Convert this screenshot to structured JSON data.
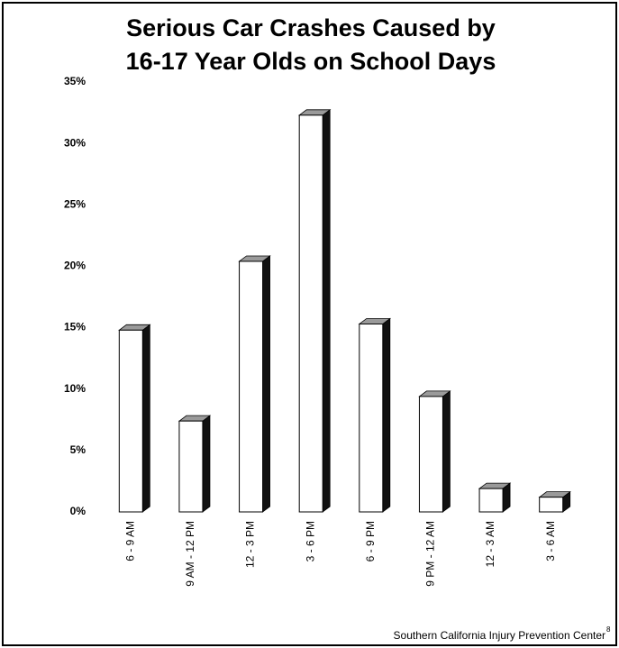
{
  "chart_data": {
    "type": "bar3d",
    "title": [
      "Serious Car Crashes Caused by",
      "16-17 Year Olds on School Days"
    ],
    "categories": [
      "6 - 9 AM",
      "9 AM - 12 PM",
      "12 - 3 PM",
      "3 - 6 PM",
      "6 - 9 PM",
      "9 PM - 12 AM",
      "12 - 3 AM",
      "3 - 6 AM"
    ],
    "values": [
      14.8,
      7.4,
      20.4,
      32.3,
      15.3,
      9.4,
      1.9,
      1.2
    ],
    "color": "#ffffff",
    "side_color": "#111111",
    "top_color": "#9a9a9a",
    "ylim": [
      0,
      35
    ],
    "yticks": [
      {
        "value": 0,
        "label": "0%"
      },
      {
        "value": 5,
        "label": "5%"
      },
      {
        "value": 10,
        "label": "10%"
      },
      {
        "value": 15,
        "label": "15%"
      },
      {
        "value": 20,
        "label": "20%"
      },
      {
        "value": 25,
        "label": "25%"
      },
      {
        "value": 30,
        "label": "30%"
      },
      {
        "value": 35,
        "label": "35%"
      }
    ],
    "grid": false,
    "source": "Southern California Injury Prevention Center",
    "footnote": "8"
  }
}
